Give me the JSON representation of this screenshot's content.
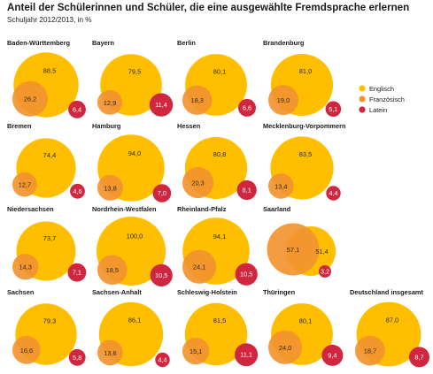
{
  "chart_data": {
    "type": "bubble",
    "title": "Anteil der Schülerinnen und Schüler, die eine ausgewählte Fremdsprache erlernen",
    "subtitle": "Schuljahr 2012/2013, in %",
    "series": [
      {
        "key": "en",
        "name": "Englisch",
        "color": "#FFBF00"
      },
      {
        "key": "fr",
        "name": "Französisch",
        "color": "#F29430"
      },
      {
        "key": "la",
        "name": "Latein",
        "color": "#D1263F"
      }
    ],
    "states": [
      {
        "name": "Baden-Württemberg",
        "en": "88,5",
        "fr": "26,2",
        "la": "6,4"
      },
      {
        "name": "Bayern",
        "en": "79,5",
        "fr": "12,9",
        "la": "11,4"
      },
      {
        "name": "Berlin",
        "en": "80,1",
        "fr": "18,3",
        "la": "6,6"
      },
      {
        "name": "Brandenburg",
        "en": "81,0",
        "fr": "19,0",
        "la": "5,1"
      },
      {
        "name": "Bremen",
        "en": "74,4",
        "fr": "12,7",
        "la": "4,6"
      },
      {
        "name": "Hamburg",
        "en": "94,0",
        "fr": "13,8",
        "la": "7,0"
      },
      {
        "name": "Hessen",
        "en": "80,8",
        "fr": "20,3",
        "la": "8,1"
      },
      {
        "name": "Mecklenburg-Vorpommern",
        "en": "83,5",
        "fr": "13,4",
        "la": "4,4"
      },
      {
        "name": "Niedersachsen",
        "en": "73,7",
        "fr": "14,3",
        "la": "7,1"
      },
      {
        "name": "Nordrhein-Westfalen",
        "en": "100,0",
        "fr": "18,5",
        "la": "10,5"
      },
      {
        "name": "Rheinland-Pfalz",
        "en": "94,1",
        "fr": "24,1",
        "la": "10,5"
      },
      {
        "name": "Saarland",
        "en": "51,4",
        "fr": "57,1",
        "la": "3,2"
      },
      {
        "name": "Sachsen",
        "en": "79,3",
        "fr": "16,6",
        "la": "5,8"
      },
      {
        "name": "Sachsen-Anhalt",
        "en": "86,1",
        "fr": "13,6",
        "la": "4,4"
      },
      {
        "name": "Schleswig-Holstein",
        "en": "81,5",
        "fr": "15,1",
        "la": "11,1"
      },
      {
        "name": "Thüringen",
        "en": "80,1",
        "fr": "24,0",
        "la": "9,4"
      },
      {
        "name": "Deutschland insgesamt",
        "en": "87,0",
        "fr": "18,7",
        "la": "8,7"
      }
    ]
  }
}
